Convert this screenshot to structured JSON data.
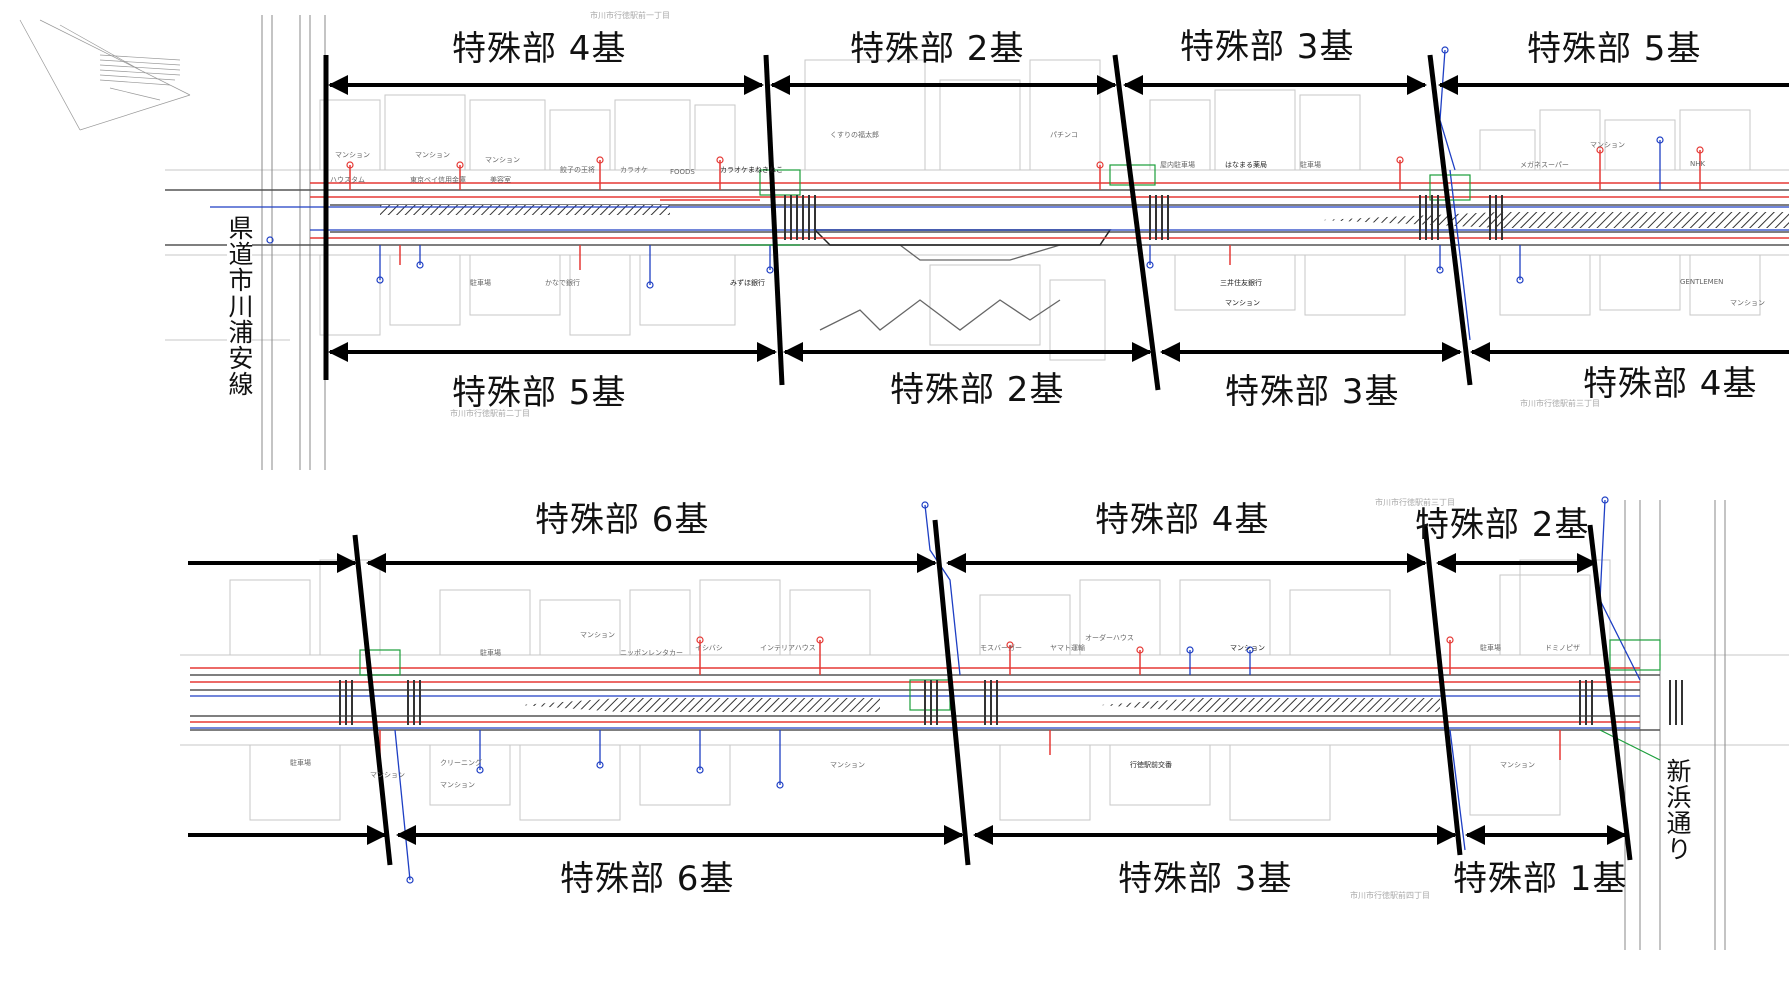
{
  "roads": {
    "west": "県道市川浦安線",
    "east": "新浜通り"
  },
  "addresses": [
    "市川市行徳駅前一丁目",
    "市川市行徳駅前二丁目",
    "市川市行徳駅前三丁目",
    "市川市行徳駅前四丁目"
  ],
  "top_strip": {
    "upper_labels": [
      "特殊部 4基",
      "特殊部 2基",
      "特殊部 3基",
      "特殊部 5基"
    ],
    "lower_labels": [
      "特殊部 5基",
      "特殊部 2基",
      "特殊部 3基",
      "特殊部 4基"
    ]
  },
  "bottom_strip": {
    "upper_labels": [
      "特殊部 6基",
      "特殊部 4基",
      "特殊部 2基"
    ],
    "lower_labels": [
      "特殊部 6基",
      "特殊部 3基",
      "特殊部 1基"
    ]
  },
  "building_labels": {
    "top": [
      "マンション",
      "マンション",
      "マンション",
      "マンション",
      "マンション",
      "ハウスタム",
      "東京ベイ信用金庫",
      "美容室",
      "餃子の王将",
      "カラオケ",
      "FOODS",
      "カラオケまねきねこ",
      "くすりの福太郎",
      "パチンコ",
      "屋内駐車場",
      "はなまる薬局",
      "駐車場",
      "メガネスーパー",
      "NHK",
      "マンション",
      "みずほ銀行",
      "かなで銀行",
      "駐車場",
      "三井住友銀行",
      "マンション",
      "GENTLEMEN",
      "マンション"
    ],
    "bottom": [
      "マンション",
      "駐車場",
      "ニッポンレンタカー",
      "イシバシ",
      "インテリアハウス",
      "マンション",
      "モスバーガー",
      "ヤマト運輸",
      "オーダーハウス",
      "マンション",
      "ドミノピザ",
      "駐車場",
      "マンション",
      "クリーニング",
      "駐車場",
      "マンション",
      "マンション",
      "行徳駅前交番"
    ]
  },
  "colors": {
    "red_lines": "#e53935",
    "blue_lines": "#1e3fc4",
    "green_lines": "#1a9e3a",
    "base_lines": "#c7c7c7",
    "road_edges": "#555555",
    "dimension_arrows": "#000000",
    "hatch": "#333333"
  }
}
